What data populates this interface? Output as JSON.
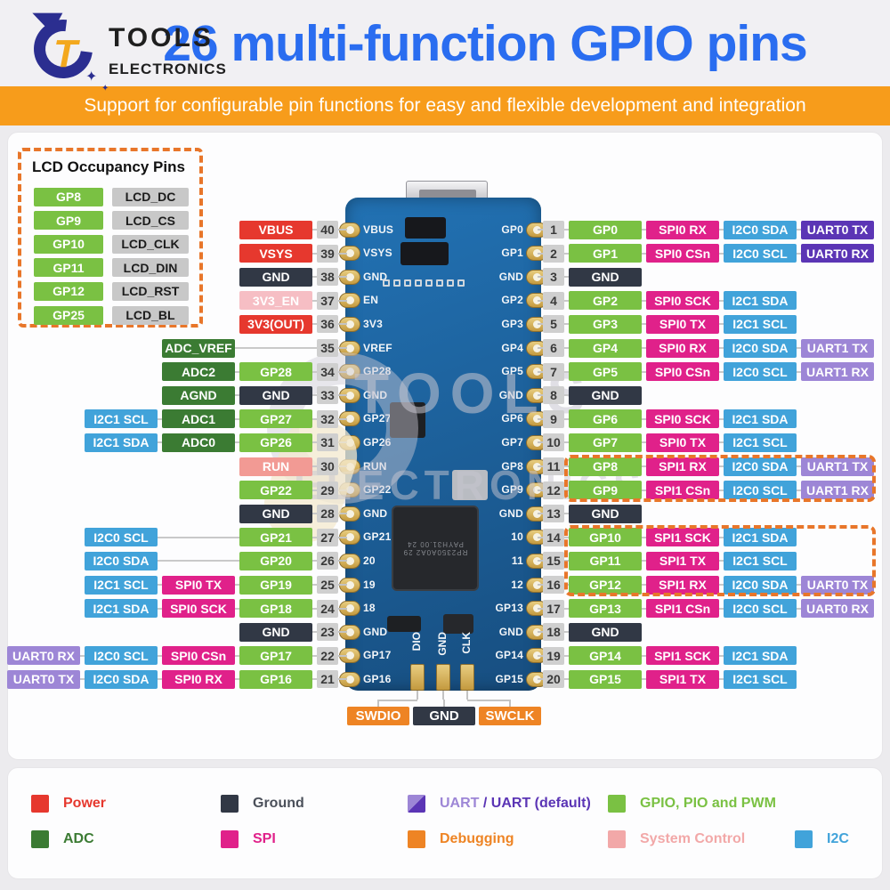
{
  "header": {
    "logo": {
      "monogram": "T",
      "line1": "TOOLS",
      "line2": "ELECTRONICS",
      "sparkle": "✦"
    },
    "title": "26 multi-function GPIO pins",
    "subtitle": "Support for configurable pin functions for easy and flexible development and integration"
  },
  "lcd_box": {
    "title": "LCD Occupancy Pins",
    "rows": [
      {
        "gpio": "GP8",
        "lcd": "LCD_DC"
      },
      {
        "gpio": "GP9",
        "lcd": "LCD_CS"
      },
      {
        "gpio": "GP10",
        "lcd": "LCD_CLK"
      },
      {
        "gpio": "GP11",
        "lcd": "LCD_DIN"
      },
      {
        "gpio": "GP12",
        "lcd": "LCD_RST"
      },
      {
        "gpio": "GP25",
        "lcd": "LCD_BL"
      }
    ]
  },
  "pins": {
    "left": [
      {
        "num": "40",
        "labels": [
          {
            "text": "VBUS",
            "type": "power"
          }
        ]
      },
      {
        "num": "39",
        "labels": [
          {
            "text": "VSYS",
            "type": "power"
          }
        ]
      },
      {
        "num": "38",
        "labels": [
          {
            "text": "GND",
            "type": "ground"
          }
        ]
      },
      {
        "num": "37",
        "labels": [
          {
            "text": "3V3_EN",
            "type": "sysctl_light"
          }
        ]
      },
      {
        "num": "36",
        "labels": [
          {
            "text": "3V3(OUT)",
            "type": "power"
          }
        ]
      },
      {
        "num": "35",
        "labels": [
          {
            "text": "ADC_VREF",
            "type": "adc"
          },
          {
            "type": "spacer"
          }
        ]
      },
      {
        "num": "34",
        "labels": [
          {
            "text": "ADC2",
            "type": "adc"
          },
          {
            "text": "GP28",
            "type": "gpio"
          }
        ]
      },
      {
        "num": "33",
        "labels": [
          {
            "text": "AGND",
            "type": "adc"
          },
          {
            "text": "GND",
            "type": "ground"
          }
        ]
      },
      {
        "num": "32",
        "labels": [
          {
            "text": "I2C1 SCL",
            "type": "i2c"
          },
          {
            "text": "ADC1",
            "type": "adc"
          },
          {
            "text": "GP27",
            "type": "gpio"
          }
        ]
      },
      {
        "num": "31",
        "labels": [
          {
            "text": "I2C1 SDA",
            "type": "i2c"
          },
          {
            "text": "ADC0",
            "type": "adc"
          },
          {
            "text": "GP26",
            "type": "gpio"
          }
        ]
      },
      {
        "num": "30",
        "labels": [
          {
            "text": "RUN",
            "type": "sysctl"
          }
        ]
      },
      {
        "num": "29",
        "labels": [
          {
            "text": "GP22",
            "type": "gpio"
          }
        ]
      },
      {
        "num": "28",
        "labels": [
          {
            "text": "GND",
            "type": "ground"
          }
        ]
      },
      {
        "num": "27",
        "labels": [
          {
            "text": "I2C0 SCL",
            "type": "i2c"
          },
          {
            "type": "spacer"
          },
          {
            "text": "GP21",
            "type": "gpio"
          }
        ]
      },
      {
        "num": "26",
        "labels": [
          {
            "text": "I2C0 SDA",
            "type": "i2c"
          },
          {
            "type": "spacer"
          },
          {
            "text": "GP20",
            "type": "gpio"
          }
        ]
      },
      {
        "num": "25",
        "labels": [
          {
            "text": "I2C1 SCL",
            "type": "i2c"
          },
          {
            "text": "SPI0 TX",
            "type": "spi"
          },
          {
            "text": "GP19",
            "type": "gpio"
          }
        ]
      },
      {
        "num": "24",
        "labels": [
          {
            "text": "I2C1 SDA",
            "type": "i2c"
          },
          {
            "text": "SPI0 SCK",
            "type": "spi"
          },
          {
            "text": "GP18",
            "type": "gpio"
          }
        ]
      },
      {
        "num": "23",
        "labels": [
          {
            "text": "GND",
            "type": "ground"
          }
        ]
      },
      {
        "num": "22",
        "labels": [
          {
            "text": "UART0 RX",
            "type": "uart"
          },
          {
            "text": "I2C0 SCL",
            "type": "i2c"
          },
          {
            "text": "SPI0 CSn",
            "type": "spi"
          },
          {
            "text": "GP17",
            "type": "gpio"
          }
        ]
      },
      {
        "num": "21",
        "labels": [
          {
            "text": "UART0 TX",
            "type": "uart"
          },
          {
            "text": "I2C0 SDA",
            "type": "i2c"
          },
          {
            "text": "SPI0 RX",
            "type": "spi"
          },
          {
            "text": "GP16",
            "type": "gpio"
          }
        ]
      }
    ],
    "right": [
      {
        "num": "1",
        "labels": [
          {
            "text": "GP0",
            "type": "gpio"
          },
          {
            "text": "SPI0 RX",
            "type": "spi"
          },
          {
            "text": "I2C0 SDA",
            "type": "i2c"
          },
          {
            "text": "UART0 TX",
            "type": "uart_default"
          }
        ]
      },
      {
        "num": "2",
        "labels": [
          {
            "text": "GP1",
            "type": "gpio"
          },
          {
            "text": "SPI0 CSn",
            "type": "spi"
          },
          {
            "text": "I2C0 SCL",
            "type": "i2c"
          },
          {
            "text": "UART0 RX",
            "type": "uart_default"
          }
        ]
      },
      {
        "num": "3",
        "labels": [
          {
            "text": "GND",
            "type": "ground"
          }
        ]
      },
      {
        "num": "4",
        "labels": [
          {
            "text": "GP2",
            "type": "gpio"
          },
          {
            "text": "SPI0 SCK",
            "type": "spi"
          },
          {
            "text": "I2C1 SDA",
            "type": "i2c"
          }
        ]
      },
      {
        "num": "5",
        "labels": [
          {
            "text": "GP3",
            "type": "gpio"
          },
          {
            "text": "SPI0 TX",
            "type": "spi"
          },
          {
            "text": "I2C1 SCL",
            "type": "i2c"
          }
        ]
      },
      {
        "num": "6",
        "labels": [
          {
            "text": "GP4",
            "type": "gpio"
          },
          {
            "text": "SPI0 RX",
            "type": "spi"
          },
          {
            "text": "I2C0 SDA",
            "type": "i2c"
          },
          {
            "text": "UART1 TX",
            "type": "uart"
          }
        ]
      },
      {
        "num": "7",
        "labels": [
          {
            "text": "GP5",
            "type": "gpio"
          },
          {
            "text": "SPI0 CSn",
            "type": "spi"
          },
          {
            "text": "I2C0 SCL",
            "type": "i2c"
          },
          {
            "text": "UART1 RX",
            "type": "uart"
          }
        ]
      },
      {
        "num": "8",
        "labels": [
          {
            "text": "GND",
            "type": "ground"
          }
        ]
      },
      {
        "num": "9",
        "labels": [
          {
            "text": "GP6",
            "type": "gpio"
          },
          {
            "text": "SPI0 SCK",
            "type": "spi"
          },
          {
            "text": "I2C1 SDA",
            "type": "i2c"
          }
        ]
      },
      {
        "num": "10",
        "labels": [
          {
            "text": "GP7",
            "type": "gpio"
          },
          {
            "text": "SPI0 TX",
            "type": "spi"
          },
          {
            "text": "I2C1 SCL",
            "type": "i2c"
          }
        ]
      },
      {
        "num": "11",
        "labels": [
          {
            "text": "GP8",
            "type": "gpio"
          },
          {
            "text": "SPI1 RX",
            "type": "spi"
          },
          {
            "text": "I2C0 SDA",
            "type": "i2c"
          },
          {
            "text": "UART1 TX",
            "type": "uart"
          }
        ]
      },
      {
        "num": "12",
        "labels": [
          {
            "text": "GP9",
            "type": "gpio"
          },
          {
            "text": "SPI1 CSn",
            "type": "spi"
          },
          {
            "text": "I2C0 SCL",
            "type": "i2c"
          },
          {
            "text": "UART1 RX",
            "type": "uart"
          }
        ]
      },
      {
        "num": "13",
        "labels": [
          {
            "text": "GND",
            "type": "ground"
          }
        ]
      },
      {
        "num": "14",
        "labels": [
          {
            "text": "GP10",
            "type": "gpio"
          },
          {
            "text": "SPI1 SCK",
            "type": "spi"
          },
          {
            "text": "I2C1 SDA",
            "type": "i2c"
          }
        ]
      },
      {
        "num": "15",
        "labels": [
          {
            "text": "GP11",
            "type": "gpio"
          },
          {
            "text": "SPI1 TX",
            "type": "spi"
          },
          {
            "text": "I2C1 SCL",
            "type": "i2c"
          }
        ]
      },
      {
        "num": "16",
        "labels": [
          {
            "text": "GP12",
            "type": "gpio"
          },
          {
            "text": "SPI1 RX",
            "type": "spi"
          },
          {
            "text": "I2C0 SDA",
            "type": "i2c"
          },
          {
            "text": "UART0 TX",
            "type": "uart"
          }
        ]
      },
      {
        "num": "17",
        "labels": [
          {
            "text": "GP13",
            "type": "gpio"
          },
          {
            "text": "SPI1 CSn",
            "type": "spi"
          },
          {
            "text": "I2C0 SCL",
            "type": "i2c"
          },
          {
            "text": "UART0 RX",
            "type": "uart"
          }
        ]
      },
      {
        "num": "18",
        "labels": [
          {
            "text": "GND",
            "type": "ground"
          }
        ]
      },
      {
        "num": "19",
        "labels": [
          {
            "text": "GP14",
            "type": "gpio"
          },
          {
            "text": "SPI1 SCK",
            "type": "spi"
          },
          {
            "text": "I2C1 SDA",
            "type": "i2c"
          }
        ]
      },
      {
        "num": "20",
        "labels": [
          {
            "text": "GP15",
            "type": "gpio"
          },
          {
            "text": "SPI1 TX",
            "type": "spi"
          },
          {
            "text": "I2C1 SCL",
            "type": "i2c"
          }
        ]
      }
    ]
  },
  "highlights": [
    {
      "side": "right",
      "from": 11,
      "to": 12
    },
    {
      "side": "right",
      "from": 14,
      "to": 16
    }
  ],
  "board": {
    "left_labels": [
      "VBUS",
      "VSYS",
      "GND",
      "EN",
      "3V3",
      "VREF",
      "GP28",
      "GND",
      "GP27",
      "GP26",
      "RUN",
      "GP22",
      "GND",
      "GP21",
      "20",
      "19",
      "18",
      "GND",
      "GP17",
      "GP16"
    ],
    "right_labels": [
      "GP0",
      "GP1",
      "GND",
      "GP2",
      "GP3",
      "GP4",
      "GP5",
      "GND",
      "GP6",
      "GP7",
      "GP8",
      "GP9",
      "GND",
      "10",
      "11",
      "12",
      "GP13",
      "GND",
      "GP14",
      "GP15"
    ],
    "mcu_marking_line1": "RP2350A0A2 29",
    "mcu_marking_line2": "PAYH31.00 24",
    "debug_pad_labels": [
      "DIO",
      "GND",
      "CLK"
    ],
    "debug_chips": [
      {
        "text": "SWDIO",
        "type": "debug"
      },
      {
        "text": "GND",
        "type": "ground"
      },
      {
        "text": "SWCLK",
        "type": "debug"
      }
    ]
  },
  "legend": {
    "row1": [
      {
        "kind": "simple",
        "label": "Power",
        "type": "power"
      },
      {
        "kind": "simple",
        "label": "Ground",
        "type": "ground_legend"
      },
      {
        "kind": "uart_split",
        "parts": [
          {
            "text": "UART",
            "type": "uart"
          },
          {
            "text": " / ",
            "type": "uart_default"
          },
          {
            "text": "UART (default)",
            "type": "uart_default"
          }
        ]
      },
      {
        "kind": "simple",
        "label": "GPIO, PIO and PWM",
        "type": "gpio"
      }
    ],
    "row2": [
      {
        "kind": "simple",
        "label": "ADC",
        "type": "adc"
      },
      {
        "kind": "simple",
        "label": "SPI",
        "type": "spi"
      },
      {
        "kind": "simple",
        "label": "Debugging",
        "type": "debug"
      },
      {
        "kind": "simple",
        "label": "System Control",
        "type": "sysctl_legend"
      },
      {
        "kind": "simple",
        "label": "I2C",
        "type": "i2c"
      }
    ]
  },
  "colors": {
    "power": "#e6382e",
    "ground": "#313845",
    "ground_legend": "#4b505a",
    "adc": "#3b7b33",
    "gpio": "#7ac143",
    "i2c": "#41a3da",
    "spi": "#e0218a",
    "uart": "#9d86d6",
    "uart_default": "#5b35b5",
    "debug": "#ee8424",
    "sysctl": "#f29a94",
    "sysctl_light": "#f6bec4",
    "sysctl_legend": "#f2a8a8",
    "badge_bg": "#cfcfcf",
    "badge_text": "#3a3a3a",
    "lcd_gray": "#c8c8c8",
    "title": "#2a6df0",
    "strip": "#f79c1b",
    "dashed": "#e8762a"
  }
}
